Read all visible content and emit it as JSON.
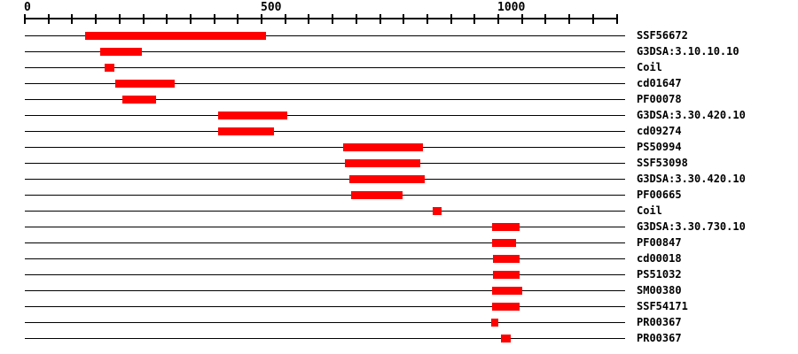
{
  "colors": {
    "bar": "#ff0000",
    "axis": "#000000",
    "label_text": "#000000",
    "background": "#ffffff"
  },
  "chart_data": {
    "type": "bar",
    "orientation": "horizontal",
    "description": "Protein sequence feature / domain annotation tracks: one horizontal line per matched signature with red span bars over residue coordinates",
    "title": "",
    "xlabel": "",
    "ylabel": "",
    "grid": false,
    "legend": false,
    "axis": {
      "position": "top",
      "min": 0,
      "max": 1250,
      "minor_tick_interval": 50,
      "major_ticks": [
        {
          "value": 0,
          "label": "0"
        },
        {
          "value": 500,
          "label": "500"
        },
        {
          "value": 1000,
          "label": "1000"
        }
      ]
    },
    "rows": [
      {
        "label": "SSF56672",
        "start": 127,
        "end": 509
      },
      {
        "label": "G3DSA:3.10.10.10",
        "start": 159,
        "end": 247
      },
      {
        "label": "Coil",
        "start": 169,
        "end": 189
      },
      {
        "label": "cd01647",
        "start": 191,
        "end": 316
      },
      {
        "label": "PF00078",
        "start": 206,
        "end": 277
      },
      {
        "label": "G3DSA:3.30.420.10",
        "start": 408,
        "end": 554
      },
      {
        "label": "cd09274",
        "start": 408,
        "end": 526
      },
      {
        "label": "PS50994",
        "start": 672,
        "end": 841
      },
      {
        "label": "SSF53098",
        "start": 676,
        "end": 835
      },
      {
        "label": "G3DSA:3.30.420.10",
        "start": 685,
        "end": 844
      },
      {
        "label": "PF00665",
        "start": 689,
        "end": 798
      },
      {
        "label": "Coil",
        "start": 861,
        "end": 880
      },
      {
        "label": "G3DSA:3.30.730.10",
        "start": 987,
        "end": 1045
      },
      {
        "label": "PF00847",
        "start": 987,
        "end": 1037
      },
      {
        "label": "cd00018",
        "start": 989,
        "end": 1045
      },
      {
        "label": "PS51032",
        "start": 989,
        "end": 1045
      },
      {
        "label": "SM00380",
        "start": 987,
        "end": 1050
      },
      {
        "label": "SSF54171",
        "start": 987,
        "end": 1045
      },
      {
        "label": "PR00367",
        "start": 985,
        "end": 1000
      },
      {
        "label": "PR00367",
        "start": 1006,
        "end": 1026
      }
    ]
  }
}
